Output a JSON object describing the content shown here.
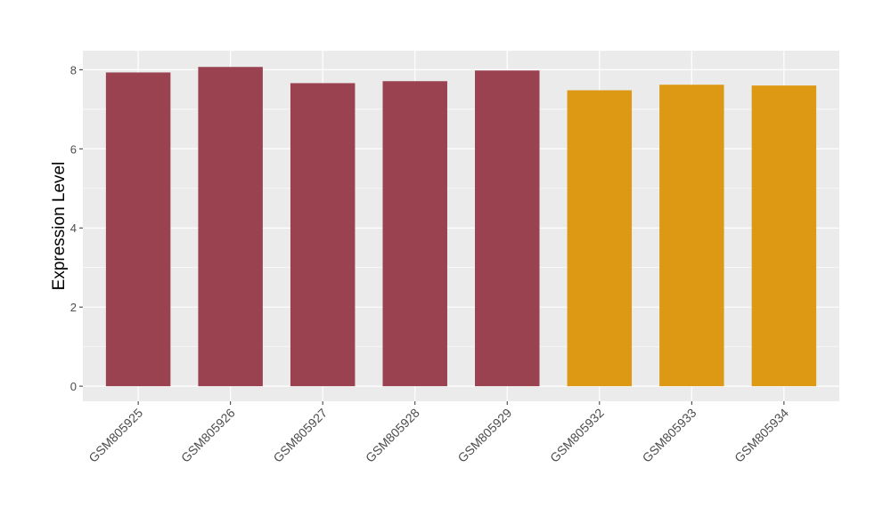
{
  "chart_data": {
    "type": "bar",
    "title": "",
    "xlabel": "",
    "ylabel": "Expression Level",
    "ylim": [
      -0.38,
      8.48
    ],
    "yticks": [
      0,
      2,
      4,
      6,
      8
    ],
    "grid": true,
    "categories": [
      "GSM805925",
      "GSM805926",
      "GSM805927",
      "GSM805928",
      "GSM805929",
      "GSM805932",
      "GSM805933",
      "GSM805934"
    ],
    "values": [
      7.93,
      8.07,
      7.66,
      7.71,
      7.98,
      7.48,
      7.62,
      7.6
    ],
    "bar_colors": [
      "#9A4250",
      "#9A4250",
      "#9A4250",
      "#9A4250",
      "#9A4250",
      "#DD9913",
      "#DD9913",
      "#DD9913"
    ],
    "panel_background": "#EBEBEB",
    "gridline_color": "#FFFFFF"
  }
}
